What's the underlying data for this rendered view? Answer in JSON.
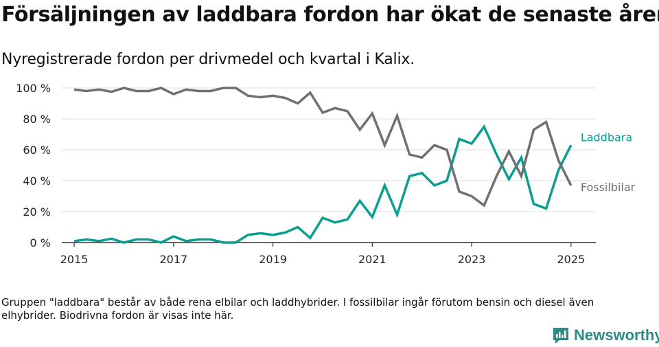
{
  "header": {
    "title": "Försäljningen av laddbara fordon har ökat de senaste åren",
    "subtitle": "Nyregistrerade fordon per drivmedel och kvartal i Kalix."
  },
  "footer": {
    "note": "Gruppen \"laddbara\" består av både rena elbilar och laddhybrider. I fossilbilar ingår förutom bensin och diesel även elhybrider. Biodrivna fordon är visas inte här.",
    "brand": "Newsworthy"
  },
  "colors": {
    "laddbara": "#0a9e92",
    "fossil": "#706f73"
  },
  "chart_data": {
    "type": "line",
    "title": "Försäljningen av laddbara fordon har ökat de senaste åren",
    "subtitle": "Nyregistrerade fordon per drivmedel och kvartal i Kalix.",
    "x_ticks": [
      "2015",
      "2017",
      "2019",
      "2021",
      "2023",
      "2025"
    ],
    "y_ticks": [
      "0 %",
      "20 %",
      "40 %",
      "60 %",
      "80 %",
      "100 %"
    ],
    "ylim": [
      0,
      100
    ],
    "xlim": [
      2014.75,
      2025.5
    ],
    "grid": true,
    "x": [
      2015.0,
      2015.25,
      2015.5,
      2015.75,
      2016.0,
      2016.25,
      2016.5,
      2016.75,
      2017.0,
      2017.25,
      2017.5,
      2017.75,
      2018.0,
      2018.25,
      2018.5,
      2018.75,
      2019.0,
      2019.25,
      2019.5,
      2019.75,
      2020.0,
      2020.25,
      2020.5,
      2020.75,
      2021.0,
      2021.25,
      2021.5,
      2021.75,
      2022.0,
      2022.25,
      2022.5,
      2022.75,
      2023.0,
      2023.25,
      2023.5,
      2023.75,
      2024.0,
      2024.25,
      2024.5,
      2024.75,
      2025.0
    ],
    "series": [
      {
        "name": "Laddbara",
        "values": [
          1,
          2,
          1,
          2.5,
          0,
          2,
          2,
          0,
          4,
          1,
          2,
          2,
          0,
          0,
          5,
          6,
          5,
          6.5,
          10,
          3,
          16,
          13,
          15,
          27,
          16.5,
          37,
          18,
          43,
          45,
          37,
          40,
          67,
          64,
          75,
          57,
          41,
          55,
          25,
          22,
          47,
          63
        ]
      },
      {
        "name": "Fossilbilar",
        "values": [
          99,
          98,
          99,
          97.5,
          100,
          98,
          98,
          100,
          96,
          99,
          98,
          98,
          100,
          100,
          95,
          94,
          95,
          93.5,
          90,
          97,
          84,
          87,
          85,
          73,
          83.5,
          63,
          82,
          57,
          55,
          63,
          60,
          33,
          30,
          24,
          43,
          59,
          43,
          73,
          78,
          53,
          37
        ]
      }
    ]
  }
}
